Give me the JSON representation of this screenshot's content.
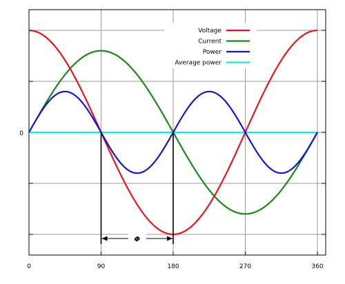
{
  "chart_data": {
    "type": "line",
    "title": "",
    "xlabel": "",
    "ylabel": "",
    "x_ticks": [
      "0",
      "90",
      "180",
      "270",
      "360"
    ],
    "y_tick_label": "0",
    "xlim": [
      0,
      360
    ],
    "ylim": [
      -1.0,
      1.0
    ],
    "grid": true,
    "legend_position": "top-right",
    "series": [
      {
        "name": "Voltage",
        "color": "#e8141a",
        "function": "cos(x)",
        "amplitude": 1.0
      },
      {
        "name": "Current",
        "color": "#188818",
        "function": "sin(x)",
        "amplitude": 0.8
      },
      {
        "name": "Power",
        "color": "#1414d2",
        "function": "cos(x)*sin(x)",
        "peak": 0.4
      },
      {
        "name": "Average power",
        "color": "#14e8e8",
        "function": "0",
        "value": 0
      }
    ],
    "annotation": {
      "label": "Φ",
      "from_x": 90,
      "to_x": 180,
      "marker_lines_at_x": [
        90,
        180
      ]
    }
  }
}
